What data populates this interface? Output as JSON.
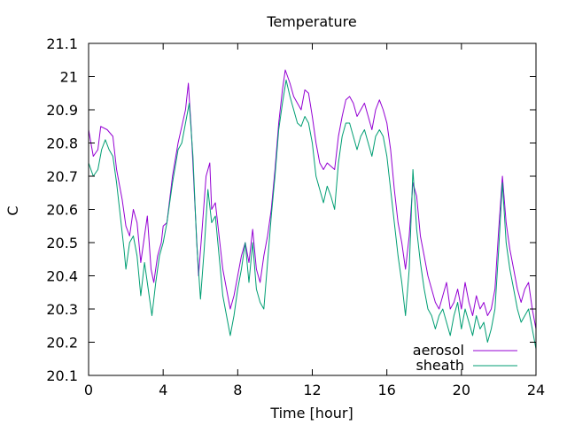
{
  "chart_data": {
    "type": "line",
    "title": "Temperature",
    "xlabel": "Time [hour]",
    "ylabel": "C",
    "xlim": [
      0,
      24
    ],
    "ylim": [
      20.1,
      21.1
    ],
    "xticks": [
      0,
      4,
      8,
      12,
      16,
      20,
      24
    ],
    "xtick_labels": [
      "0",
      "4",
      "8",
      "12",
      "16",
      "20",
      "24"
    ],
    "yticks": [
      20.1,
      20.2,
      20.3,
      20.4,
      20.5,
      20.6,
      20.7,
      20.8,
      20.9,
      21,
      21.1
    ],
    "ytick_labels": [
      "20.1",
      "20.2",
      "20.3",
      "20.4",
      "20.5",
      "20.6",
      "20.7",
      "20.8",
      "20.9",
      "21",
      "21.1"
    ],
    "grid": false,
    "legend_position": "bottom-right",
    "series": [
      {
        "name": "aerosol",
        "color": "#9400d3",
        "points": [
          [
            0.0,
            20.84
          ],
          [
            0.25,
            20.76
          ],
          [
            0.5,
            20.78
          ],
          [
            0.65,
            20.85
          ],
          [
            1.0,
            20.84
          ],
          [
            1.3,
            20.82
          ],
          [
            1.5,
            20.72
          ],
          [
            1.8,
            20.63
          ],
          [
            2.0,
            20.55
          ],
          [
            2.2,
            20.52
          ],
          [
            2.4,
            20.6
          ],
          [
            2.6,
            20.56
          ],
          [
            2.8,
            20.44
          ],
          [
            3.0,
            20.52
          ],
          [
            3.15,
            20.58
          ],
          [
            3.35,
            20.42
          ],
          [
            3.5,
            20.38
          ],
          [
            3.7,
            20.46
          ],
          [
            3.9,
            20.5
          ],
          [
            4.0,
            20.55
          ],
          [
            4.2,
            20.56
          ],
          [
            4.5,
            20.7
          ],
          [
            4.8,
            20.8
          ],
          [
            5.0,
            20.85
          ],
          [
            5.2,
            20.9
          ],
          [
            5.35,
            20.98
          ],
          [
            5.5,
            20.85
          ],
          [
            5.7,
            20.62
          ],
          [
            5.9,
            20.4
          ],
          [
            6.1,
            20.55
          ],
          [
            6.3,
            20.7
          ],
          [
            6.5,
            20.74
          ],
          [
            6.6,
            20.6
          ],
          [
            6.8,
            20.62
          ],
          [
            7.0,
            20.52
          ],
          [
            7.2,
            20.42
          ],
          [
            7.4,
            20.36
          ],
          [
            7.6,
            20.3
          ],
          [
            7.8,
            20.34
          ],
          [
            8.0,
            20.4
          ],
          [
            8.2,
            20.46
          ],
          [
            8.4,
            20.5
          ],
          [
            8.6,
            20.44
          ],
          [
            8.8,
            20.54
          ],
          [
            9.0,
            20.42
          ],
          [
            9.2,
            20.38
          ],
          [
            9.4,
            20.46
          ],
          [
            9.6,
            20.52
          ],
          [
            9.8,
            20.6
          ],
          [
            10.0,
            20.72
          ],
          [
            10.2,
            20.86
          ],
          [
            10.4,
            20.96
          ],
          [
            10.55,
            21.02
          ],
          [
            10.8,
            20.98
          ],
          [
            11.0,
            20.94
          ],
          [
            11.2,
            20.92
          ],
          [
            11.4,
            20.9
          ],
          [
            11.6,
            20.96
          ],
          [
            11.8,
            20.95
          ],
          [
            12.0,
            20.88
          ],
          [
            12.2,
            20.8
          ],
          [
            12.4,
            20.74
          ],
          [
            12.6,
            20.72
          ],
          [
            12.8,
            20.74
          ],
          [
            13.0,
            20.73
          ],
          [
            13.2,
            20.72
          ],
          [
            13.4,
            20.82
          ],
          [
            13.6,
            20.88
          ],
          [
            13.8,
            20.93
          ],
          [
            14.0,
            20.94
          ],
          [
            14.2,
            20.92
          ],
          [
            14.4,
            20.88
          ],
          [
            14.6,
            20.9
          ],
          [
            14.8,
            20.92
          ],
          [
            15.0,
            20.88
          ],
          [
            15.2,
            20.84
          ],
          [
            15.4,
            20.9
          ],
          [
            15.6,
            20.93
          ],
          [
            15.8,
            20.9
          ],
          [
            16.0,
            20.86
          ],
          [
            16.2,
            20.78
          ],
          [
            16.4,
            20.66
          ],
          [
            16.6,
            20.56
          ],
          [
            16.8,
            20.5
          ],
          [
            17.0,
            20.42
          ],
          [
            17.2,
            20.52
          ],
          [
            17.4,
            20.68
          ],
          [
            17.6,
            20.64
          ],
          [
            17.8,
            20.52
          ],
          [
            18.0,
            20.46
          ],
          [
            18.2,
            20.4
          ],
          [
            18.4,
            20.36
          ],
          [
            18.6,
            20.32
          ],
          [
            18.8,
            20.3
          ],
          [
            19.0,
            20.34
          ],
          [
            19.2,
            20.38
          ],
          [
            19.4,
            20.3
          ],
          [
            19.6,
            20.32
          ],
          [
            19.8,
            20.36
          ],
          [
            20.0,
            20.3
          ],
          [
            20.2,
            20.38
          ],
          [
            20.4,
            20.32
          ],
          [
            20.6,
            20.28
          ],
          [
            20.8,
            20.34
          ],
          [
            21.0,
            20.3
          ],
          [
            21.2,
            20.32
          ],
          [
            21.4,
            20.28
          ],
          [
            21.6,
            20.3
          ],
          [
            21.8,
            20.36
          ],
          [
            22.0,
            20.54
          ],
          [
            22.2,
            20.7
          ],
          [
            22.4,
            20.56
          ],
          [
            22.6,
            20.48
          ],
          [
            22.8,
            20.42
          ],
          [
            23.0,
            20.36
          ],
          [
            23.2,
            20.32
          ],
          [
            23.4,
            20.36
          ],
          [
            23.6,
            20.38
          ],
          [
            23.8,
            20.3
          ],
          [
            24.0,
            20.24
          ]
        ]
      },
      {
        "name": "sheath",
        "color": "#009e73",
        "points": [
          [
            0.0,
            20.74
          ],
          [
            0.25,
            20.7
          ],
          [
            0.5,
            20.72
          ],
          [
            0.7,
            20.78
          ],
          [
            0.9,
            20.81
          ],
          [
            1.1,
            20.78
          ],
          [
            1.3,
            20.76
          ],
          [
            1.5,
            20.68
          ],
          [
            1.7,
            20.58
          ],
          [
            1.9,
            20.48
          ],
          [
            2.0,
            20.42
          ],
          [
            2.2,
            20.5
          ],
          [
            2.4,
            20.52
          ],
          [
            2.6,
            20.46
          ],
          [
            2.8,
            20.34
          ],
          [
            3.0,
            20.44
          ],
          [
            3.2,
            20.36
          ],
          [
            3.4,
            20.28
          ],
          [
            3.6,
            20.38
          ],
          [
            3.8,
            20.46
          ],
          [
            4.0,
            20.5
          ],
          [
            4.2,
            20.56
          ],
          [
            4.5,
            20.68
          ],
          [
            4.8,
            20.78
          ],
          [
            5.0,
            20.8
          ],
          [
            5.2,
            20.86
          ],
          [
            5.4,
            20.92
          ],
          [
            5.6,
            20.76
          ],
          [
            5.8,
            20.5
          ],
          [
            6.0,
            20.33
          ],
          [
            6.2,
            20.48
          ],
          [
            6.4,
            20.66
          ],
          [
            6.6,
            20.56
          ],
          [
            6.8,
            20.58
          ],
          [
            7.0,
            20.46
          ],
          [
            7.2,
            20.34
          ],
          [
            7.4,
            20.28
          ],
          [
            7.6,
            20.22
          ],
          [
            7.8,
            20.28
          ],
          [
            8.0,
            20.36
          ],
          [
            8.2,
            20.42
          ],
          [
            8.4,
            20.5
          ],
          [
            8.6,
            20.38
          ],
          [
            8.8,
            20.5
          ],
          [
            9.0,
            20.36
          ],
          [
            9.2,
            20.32
          ],
          [
            9.4,
            20.3
          ],
          [
            9.6,
            20.44
          ],
          [
            9.8,
            20.58
          ],
          [
            10.0,
            20.7
          ],
          [
            10.2,
            20.84
          ],
          [
            10.4,
            20.92
          ],
          [
            10.6,
            20.99
          ],
          [
            10.8,
            20.94
          ],
          [
            11.0,
            20.9
          ],
          [
            11.2,
            20.86
          ],
          [
            11.4,
            20.85
          ],
          [
            11.6,
            20.88
          ],
          [
            11.8,
            20.86
          ],
          [
            12.0,
            20.8
          ],
          [
            12.2,
            20.7
          ],
          [
            12.4,
            20.66
          ],
          [
            12.6,
            20.62
          ],
          [
            12.8,
            20.67
          ],
          [
            13.0,
            20.64
          ],
          [
            13.2,
            20.6
          ],
          [
            13.4,
            20.74
          ],
          [
            13.6,
            20.82
          ],
          [
            13.8,
            20.86
          ],
          [
            14.0,
            20.86
          ],
          [
            14.2,
            20.82
          ],
          [
            14.4,
            20.78
          ],
          [
            14.6,
            20.82
          ],
          [
            14.8,
            20.84
          ],
          [
            15.0,
            20.8
          ],
          [
            15.2,
            20.76
          ],
          [
            15.4,
            20.82
          ],
          [
            15.6,
            20.84
          ],
          [
            15.8,
            20.82
          ],
          [
            16.0,
            20.76
          ],
          [
            16.2,
            20.66
          ],
          [
            16.4,
            20.56
          ],
          [
            16.6,
            20.46
          ],
          [
            16.8,
            20.38
          ],
          [
            17.0,
            20.28
          ],
          [
            17.2,
            20.42
          ],
          [
            17.4,
            20.72
          ],
          [
            17.6,
            20.54
          ],
          [
            17.8,
            20.44
          ],
          [
            18.0,
            20.36
          ],
          [
            18.2,
            20.3
          ],
          [
            18.4,
            20.28
          ],
          [
            18.6,
            20.24
          ],
          [
            18.8,
            20.28
          ],
          [
            19.0,
            20.3
          ],
          [
            19.2,
            20.26
          ],
          [
            19.4,
            20.22
          ],
          [
            19.6,
            20.28
          ],
          [
            19.8,
            20.32
          ],
          [
            20.0,
            20.24
          ],
          [
            20.2,
            20.3
          ],
          [
            20.4,
            20.26
          ],
          [
            20.6,
            20.22
          ],
          [
            20.8,
            20.28
          ],
          [
            21.0,
            20.24
          ],
          [
            21.2,
            20.26
          ],
          [
            21.4,
            20.2
          ],
          [
            21.6,
            20.24
          ],
          [
            21.8,
            20.3
          ],
          [
            22.0,
            20.48
          ],
          [
            22.2,
            20.68
          ],
          [
            22.4,
            20.5
          ],
          [
            22.6,
            20.42
          ],
          [
            22.8,
            20.36
          ],
          [
            23.0,
            20.3
          ],
          [
            23.2,
            20.26
          ],
          [
            23.4,
            20.28
          ],
          [
            23.6,
            20.3
          ],
          [
            23.8,
            20.24
          ],
          [
            24.0,
            20.18
          ]
        ]
      }
    ]
  }
}
